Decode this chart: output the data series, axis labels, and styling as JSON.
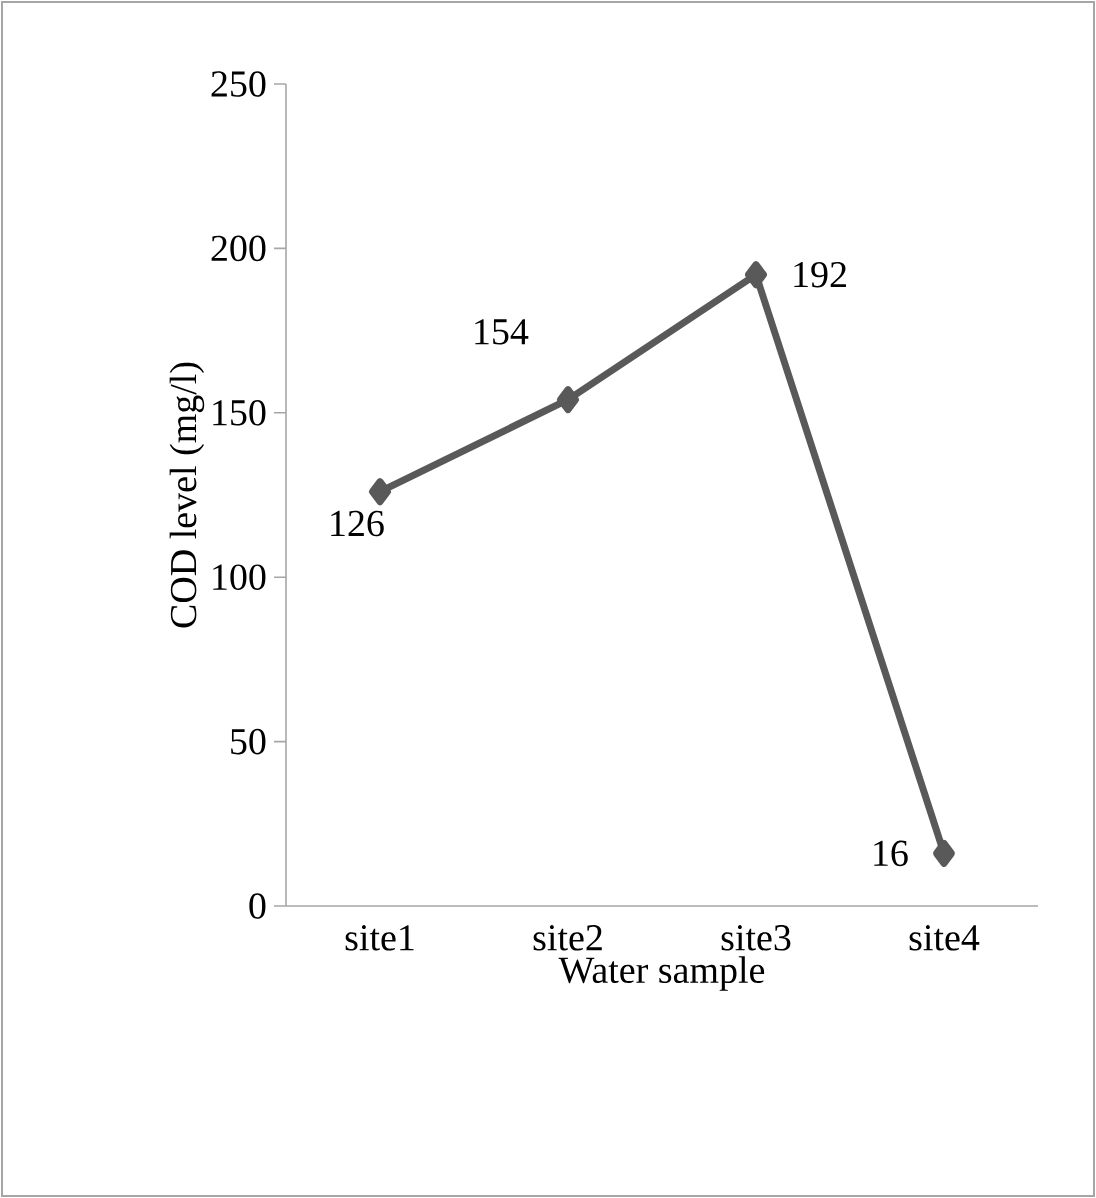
{
  "chart_data": {
    "type": "line",
    "xlabel": "Water sample",
    "ylabel": "COD level (mg/l)",
    "categories": [
      "site1",
      "site2",
      "site3",
      "site4"
    ],
    "series": [
      {
        "color": "#595959",
        "values": [
          126,
          154,
          192,
          16
        ]
      }
    ],
    "ylim": [
      0,
      250
    ],
    "yticks": [
      0,
      50,
      100,
      150,
      200,
      250
    ],
    "marker": "diamond",
    "line_style": "solid",
    "data_labels": true,
    "grid": false
  }
}
